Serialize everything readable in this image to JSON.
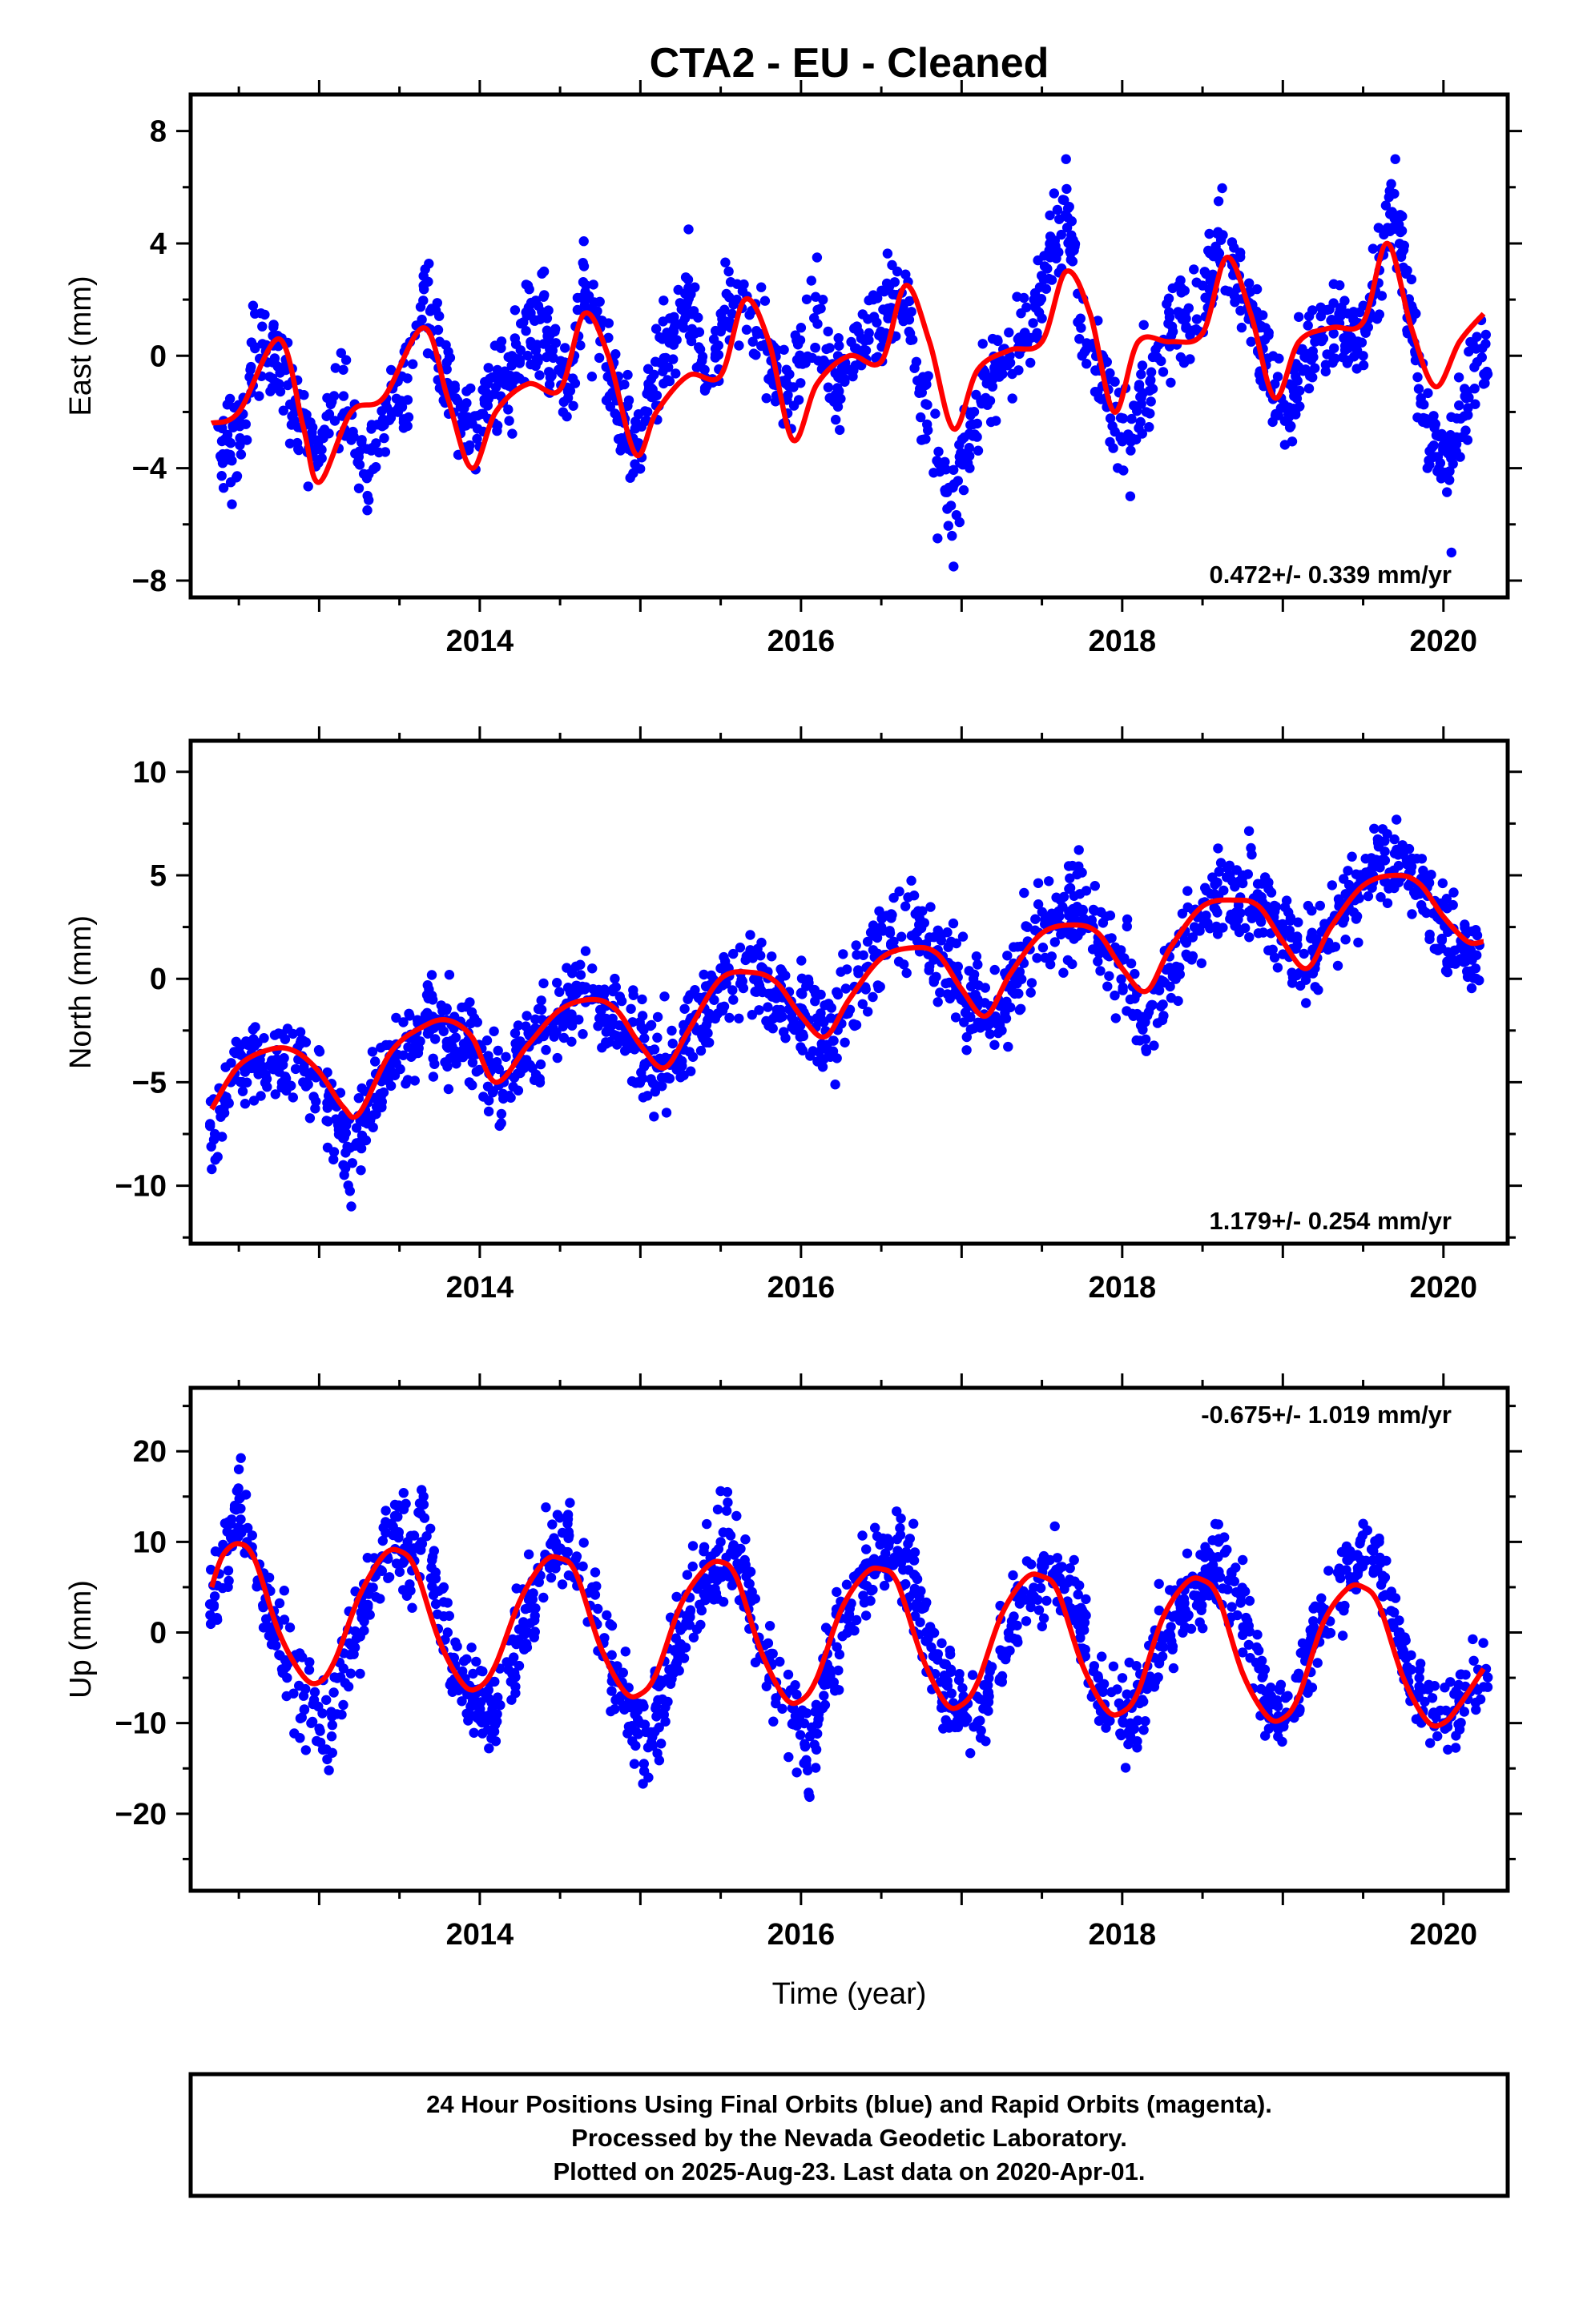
{
  "title": "CTA2  - EU - Cleaned",
  "colors": {
    "points": "#0000ff",
    "fit": "#ff0000",
    "frame": "#000000"
  },
  "chart_data": [
    {
      "type": "scatter",
      "ylabel": "East (mm)",
      "rate": "0.472+/- 0.339 mm/yr",
      "xlim": [
        2012.2,
        2020.4
      ],
      "ylim": [
        -8.6,
        9.3
      ],
      "x_ticks": [
        2014,
        2016,
        2018,
        2020
      ],
      "x_tick_labels": [
        "2014",
        "2016",
        "2018",
        "2020"
      ],
      "y_ticks": [
        -8,
        -4,
        0,
        4,
        8
      ],
      "y_tick_labels": [
        "−8",
        "−4",
        "0",
        "4",
        "8"
      ],
      "fit_series": {
        "name": "",
        "x": [
          2012.33,
          2012.5,
          2012.75,
          2012.9,
          2013.0,
          2013.2,
          2013.4,
          2013.65,
          2013.8,
          2013.95,
          2014.1,
          2014.3,
          2014.5,
          2014.65,
          2014.8,
          2014.97,
          2015.1,
          2015.3,
          2015.5,
          2015.65,
          2015.8,
          2015.95,
          2016.1,
          2016.3,
          2016.5,
          2016.65,
          2016.8,
          2016.95,
          2017.1,
          2017.3,
          2017.5,
          2017.65,
          2017.8,
          2017.95,
          2018.1,
          2018.3,
          2018.5,
          2018.65,
          2018.8,
          2018.95,
          2019.1,
          2019.3,
          2019.5,
          2019.65,
          2019.8,
          2019.95,
          2020.1,
          2020.25
        ],
        "y": [
          -2.4,
          -2.0,
          0.6,
          -2.5,
          -4.5,
          -2.0,
          -1.5,
          1.0,
          -1.5,
          -4.0,
          -2.0,
          -1.0,
          -1.2,
          1.5,
          0.0,
          -3.5,
          -2.0,
          -0.7,
          -0.7,
          2.0,
          0.5,
          -3.0,
          -1.0,
          0.0,
          -0.2,
          2.5,
          0.5,
          -2.6,
          -0.5,
          0.2,
          0.5,
          3.0,
          1.5,
          -2.0,
          0.5,
          0.5,
          0.8,
          3.5,
          1.5,
          -1.5,
          0.5,
          1.0,
          1.2,
          4.0,
          1.0,
          -1.1,
          0.5,
          1.5
        ]
      },
      "point_series": {
        "name": "",
        "x": [
          2012.4,
          2012.45,
          2012.55,
          2012.6,
          2012.75,
          2012.85,
          2012.95,
          2013.05,
          2013.15,
          2013.2,
          2013.3,
          2013.45,
          2013.55,
          2013.65,
          2013.75,
          2013.9,
          2014.05,
          2014.2,
          2014.3,
          2014.4,
          2014.55,
          2014.65,
          2014.75,
          2014.85,
          2014.95,
          2015.05,
          2015.3,
          2015.4,
          2015.55,
          2015.6,
          2015.7,
          2015.85,
          2016.0,
          2016.1,
          2016.2,
          2016.3,
          2016.45,
          2016.6,
          2016.75,
          2016.85,
          2016.95,
          2017.05,
          2017.15,
          2017.3,
          2017.45,
          2017.55,
          2017.65,
          2017.75,
          2017.9,
          2018.05,
          2018.15,
          2018.25,
          2018.35,
          2018.5,
          2018.6,
          2018.7,
          2018.85,
          2018.95,
          2019.05,
          2019.2,
          2019.35,
          2019.5,
          2019.6,
          2019.7,
          2019.8,
          2019.9,
          2020.05,
          2020.15,
          2020.25
        ],
        "y": [
          -3.5,
          -4.5,
          -3.0,
          1.5,
          -1.0,
          -2.0,
          -3.0,
          -1.5,
          -0.5,
          -3.0,
          -5.5,
          -2.0,
          -2.5,
          2.5,
          0.5,
          -2.5,
          -1.0,
          0.0,
          2.5,
          3.0,
          -1.5,
          2.0,
          1.0,
          -1.5,
          -3.0,
          -1.0,
          4.5,
          -0.5,
          3.0,
          2.0,
          0.5,
          -1.0,
          1.0,
          3.5,
          -1.5,
          -0.5,
          2.0,
          3.0,
          -3.0,
          -6.5,
          -7.5,
          -4.0,
          -1.5,
          0.0,
          2.0,
          5.0,
          7.0,
          0.0,
          -1.5,
          -5.0,
          -2.0,
          0.5,
          2.5,
          2.5,
          5.5,
          3.0,
          1.0,
          -1.0,
          -2.5,
          0.5,
          1.5,
          0.0,
          3.5,
          7.0,
          1.5,
          -4.0,
          -7.0,
          -3.0,
          -1.0
        ]
      }
    },
    {
      "type": "scatter",
      "ylabel": "North (mm)",
      "rate": "1.179+/- 0.254 mm/yr",
      "xlim": [
        2012.2,
        2020.4
      ],
      "ylim": [
        -12.8,
        11.5
      ],
      "x_ticks": [
        2014,
        2016,
        2018,
        2020
      ],
      "x_tick_labels": [
        "2014",
        "2016",
        "2018",
        "2020"
      ],
      "y_ticks": [
        -10,
        -5,
        0,
        5,
        10
      ],
      "y_tick_labels": [
        "−10",
        "−5",
        "0",
        "5",
        "10"
      ],
      "fit_series": {
        "name": "",
        "x": [
          2012.33,
          2012.5,
          2012.7,
          2012.85,
          2013.0,
          2013.15,
          2013.25,
          2013.45,
          2013.65,
          2013.8,
          2013.95,
          2014.1,
          2014.3,
          2014.5,
          2014.7,
          2014.85,
          2015.0,
          2015.15,
          2015.3,
          2015.5,
          2015.7,
          2015.85,
          2016.0,
          2016.15,
          2016.3,
          2016.5,
          2016.7,
          2016.85,
          2017.0,
          2017.15,
          2017.3,
          2017.5,
          2017.7,
          2017.85,
          2018.0,
          2018.15,
          2018.3,
          2018.5,
          2018.7,
          2018.85,
          2019.0,
          2019.15,
          2019.3,
          2019.5,
          2019.7,
          2019.85,
          2020.0,
          2020.15,
          2020.25
        ],
        "y": [
          -6.3,
          -4.2,
          -3.4,
          -3.5,
          -4.5,
          -6.2,
          -6.5,
          -3.5,
          -2.3,
          -2.0,
          -2.8,
          -5.0,
          -3.2,
          -1.5,
          -1.0,
          -1.5,
          -3.2,
          -4.3,
          -2.5,
          0.0,
          0.3,
          -0.2,
          -1.8,
          -2.8,
          -1.0,
          1.0,
          1.5,
          1.2,
          -0.5,
          -1.8,
          0.2,
          2.2,
          2.6,
          2.2,
          0.5,
          -0.6,
          1.5,
          3.5,
          3.8,
          3.5,
          1.8,
          0.5,
          2.5,
          4.5,
          5.0,
          4.6,
          3.0,
          1.8,
          1.8
        ]
      },
      "point_series": {
        "name": "",
        "x": [
          2012.35,
          2012.45,
          2012.6,
          2012.75,
          2012.9,
          2013.05,
          2013.15,
          2013.2,
          2013.3,
          2013.45,
          2013.6,
          2013.75,
          2013.85,
          2014.05,
          2014.15,
          2014.5,
          2014.6,
          2014.75,
          2014.9,
          2015.15,
          2015.35,
          2015.55,
          2015.7,
          2015.85,
          2016.05,
          2016.2,
          2016.35,
          2016.5,
          2016.65,
          2016.8,
          2016.95,
          2017.1,
          2017.25,
          2017.4,
          2017.55,
          2017.7,
          2017.85,
          2018.05,
          2018.15,
          2018.25,
          2018.45,
          2018.6,
          2018.75,
          2018.9,
          2019.05,
          2019.2,
          2019.35,
          2019.5,
          2019.65,
          2019.75,
          2019.9,
          2020.05,
          2020.2
        ],
        "y": [
          -7.5,
          -5.0,
          -4.0,
          -4.5,
          -5.0,
          -6.0,
          -9.0,
          -11.0,
          -7.0,
          -4.5,
          -3.0,
          -2.0,
          -3.5,
          -4.0,
          -5.0,
          -2.0,
          -0.5,
          -1.5,
          -3.0,
          -4.0,
          -2.5,
          0.5,
          1.0,
          -1.5,
          -2.0,
          -3.5,
          -0.5,
          2.5,
          3.5,
          2.0,
          0.5,
          -1.0,
          -2.5,
          1.5,
          3.0,
          4.0,
          2.0,
          -1.0,
          -3.5,
          -2.0,
          2.5,
          4.0,
          5.0,
          3.5,
          2.0,
          1.0,
          3.5,
          5.0,
          7.0,
          6.0,
          4.0,
          1.0,
          0.5
        ]
      }
    },
    {
      "type": "scatter",
      "ylabel": "Up (mm)",
      "rate": "-0.675+/- 1.019 mm/yr",
      "xlabel": "Time (year)",
      "xlim": [
        2012.2,
        2020.4
      ],
      "ylim": [
        -28.5,
        27.0
      ],
      "x_ticks": [
        2014,
        2016,
        2018,
        2020
      ],
      "x_tick_labels": [
        "2014",
        "2016",
        "2018",
        "2020"
      ],
      "y_ticks": [
        -20,
        -10,
        0,
        10,
        20
      ],
      "y_tick_labels": [
        "−20",
        "−10",
        "0",
        "10",
        "20"
      ],
      "fit_series": {
        "name": "",
        "x": [
          2012.33,
          2012.4,
          2012.5,
          2012.6,
          2012.75,
          2012.9,
          2013.0,
          2013.1,
          2013.25,
          2013.4,
          2013.5,
          2013.6,
          2013.75,
          2013.9,
          2014.0,
          2014.1,
          2014.25,
          2014.4,
          2014.5,
          2014.6,
          2014.75,
          2014.9,
          2015.0,
          2015.1,
          2015.25,
          2015.4,
          2015.5,
          2015.6,
          2015.75,
          2015.9,
          2016.0,
          2016.1,
          2016.25,
          2016.4,
          2016.5,
          2016.6,
          2016.75,
          2016.9,
          2017.0,
          2017.1,
          2017.25,
          2017.4,
          2017.5,
          2017.6,
          2017.75,
          2017.9,
          2018.0,
          2018.1,
          2018.25,
          2018.4,
          2018.5,
          2018.6,
          2018.75,
          2018.9,
          2019.0,
          2019.1,
          2019.25,
          2019.4,
          2019.5,
          2019.6,
          2019.75,
          2019.9,
          2020.0,
          2020.1,
          2020.25
        ],
        "y": [
          5.0,
          8.5,
          9.8,
          8.0,
          0.0,
          -4.8,
          -5.5,
          -3.0,
          4.0,
          8.5,
          9.0,
          7.0,
          -1.0,
          -5.8,
          -6.0,
          -3.5,
          3.5,
          7.8,
          8.2,
          6.5,
          -1.5,
          -6.5,
          -6.8,
          -4.5,
          3.0,
          7.0,
          7.8,
          6.0,
          -2.0,
          -7.2,
          -7.5,
          -5.0,
          2.5,
          6.5,
          7.0,
          5.5,
          -2.5,
          -7.8,
          -8.0,
          -5.5,
          2.0,
          6.0,
          6.2,
          4.5,
          -3.5,
          -8.5,
          -8.8,
          -6.5,
          1.5,
          5.5,
          5.8,
          3.8,
          -4.5,
          -9.2,
          -9.5,
          -7.0,
          1.0,
          4.8,
          5.0,
          3.0,
          -5.0,
          -9.8,
          -10.0,
          -8.0,
          -4.0
        ]
      },
      "point_series": {
        "name": "",
        "x": [
          2012.35,
          2012.45,
          2012.5,
          2012.55,
          2012.65,
          2012.8,
          2012.95,
          2013.05,
          2013.15,
          2013.3,
          2013.45,
          2013.55,
          2013.65,
          2013.8,
          2013.95,
          2014.1,
          2014.3,
          2014.45,
          2014.55,
          2014.7,
          2014.85,
          2014.95,
          2015.05,
          2015.25,
          2015.4,
          2015.5,
          2015.65,
          2015.8,
          2015.95,
          2016.05,
          2016.15,
          2016.3,
          2016.45,
          2016.55,
          2016.7,
          2016.85,
          2017.0,
          2017.15,
          2017.3,
          2017.45,
          2017.55,
          2017.7,
          2017.85,
          2018.05,
          2018.2,
          2018.35,
          2018.5,
          2018.6,
          2018.75,
          2018.85,
          2018.95,
          2019.1,
          2019.25,
          2019.4,
          2019.5,
          2019.6,
          2019.75,
          2019.85,
          2020.0,
          2020.1,
          2020.25
        ],
        "y": [
          4.0,
          12.0,
          18.0,
          10.0,
          3.0,
          -5.0,
          -10.0,
          -14.0,
          -8.0,
          2.0,
          12.0,
          10.0,
          15.0,
          0.0,
          -8.0,
          -12.0,
          0.0,
          10.0,
          13.0,
          5.0,
          -5.0,
          -12.0,
          -16.0,
          -2.0,
          6.0,
          10.0,
          8.0,
          -3.0,
          -10.0,
          -18.0,
          -8.0,
          2.0,
          8.0,
          10.0,
          12.0,
          -3.0,
          -8.0,
          -12.0,
          -2.0,
          4.0,
          8.0,
          8.0,
          -5.0,
          -10.0,
          -6.0,
          2.0,
          5.0,
          10.0,
          8.0,
          -2.0,
          -10.0,
          -5.0,
          2.0,
          8.0,
          12.0,
          10.0,
          -2.0,
          -5.0,
          -10.0,
          -8.0,
          -6.0
        ]
      }
    }
  ],
  "footer": {
    "line1": "24 Hour Positions Using Final Orbits (blue) and Rapid Orbits (magenta).",
    "line2": "Processed by the Nevada Geodetic Laboratory.",
    "line3": "Plotted on 2025-Aug-23. Last data on 2020-Apr-01."
  }
}
